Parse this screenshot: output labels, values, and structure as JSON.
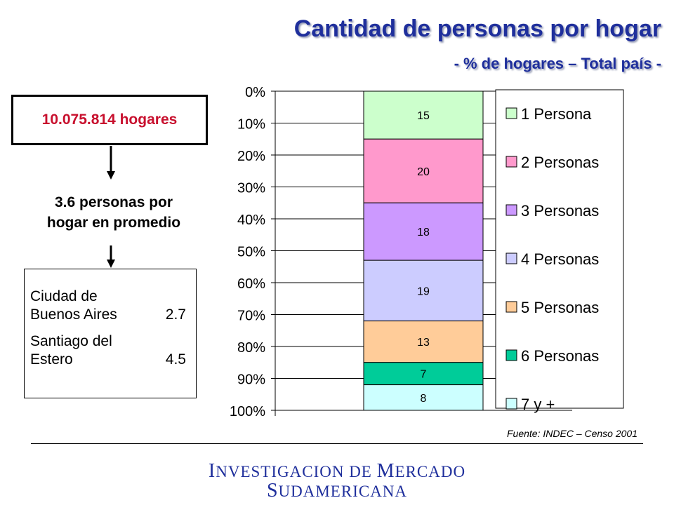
{
  "title": "Cantidad de personas por hogar",
  "subtitle": "- % de hogares – Total país -",
  "total_households": "10.075.814 hogares",
  "average": {
    "line1": "3.6 personas por",
    "line2": "hogar en promedio"
  },
  "cities": [
    {
      "line1": "Ciudad de",
      "line2": "Buenos Aires",
      "value": "2.7"
    },
    {
      "line1": "Santiago del",
      "line2": "Estero",
      "value": "4.5"
    }
  ],
  "source": "Fuente: INDEC – Censo 2001",
  "footer": {
    "line1_initial": "I",
    "line1_rest": "NVESTIGACION DE ",
    "line1_initial2": "M",
    "line1_rest2": "ERCADO",
    "line2_initial": "S",
    "line2_rest": "UDAMERICANA"
  },
  "chart_data": {
    "type": "bar",
    "stacked": true,
    "orientation": "vertical",
    "y_axis_reversed": true,
    "ylim": [
      0,
      100
    ],
    "y_ticks": [
      "0%",
      "10%",
      "20%",
      "30%",
      "40%",
      "50%",
      "60%",
      "70%",
      "80%",
      "90%",
      "100%"
    ],
    "categories": [
      ""
    ],
    "series": [
      {
        "name": "1 Persona",
        "values": [
          15
        ],
        "label": "15",
        "color": "#ccffcc"
      },
      {
        "name": "2 Personas",
        "values": [
          20
        ],
        "label": "20",
        "color": "#ff99cc"
      },
      {
        "name": "3 Personas",
        "values": [
          18
        ],
        "label": "18",
        "color": "#cc99ff"
      },
      {
        "name": "4 Personas",
        "values": [
          19
        ],
        "label": "19",
        "color": "#ccccff"
      },
      {
        "name": "5 Personas",
        "values": [
          13
        ],
        "label": "13",
        "color": "#ffcc99"
      },
      {
        "name": "6 Personas",
        "values": [
          7
        ],
        "label": "7",
        "color": "#00cc99"
      },
      {
        "name": "7 y +",
        "values": [
          8
        ],
        "label": "8",
        "color": "#ccffff"
      }
    ],
    "legend_position": "right",
    "grid": true
  }
}
